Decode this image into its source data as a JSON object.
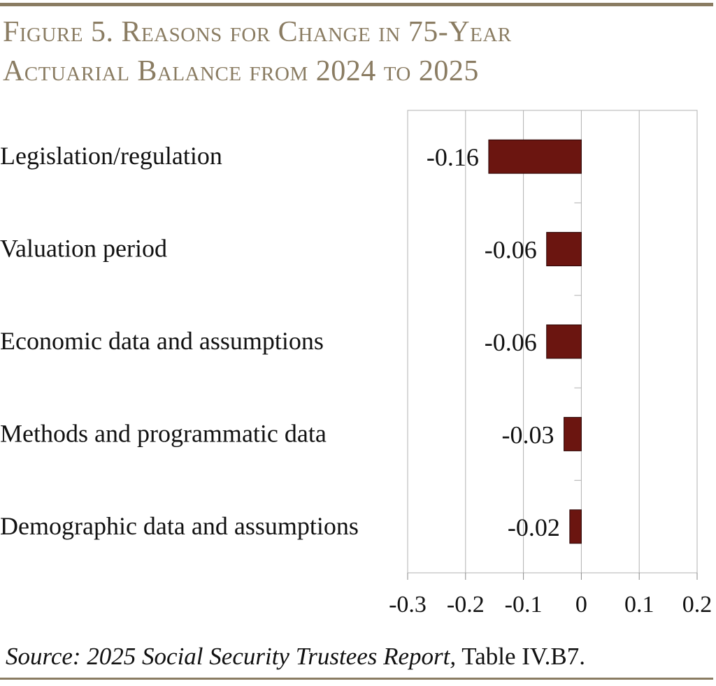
{
  "header": {
    "title_line1": "Figure 5. Reasons for Change in 75-Year",
    "title_line2": "Actuarial Balance from 2024 to 2025"
  },
  "source": {
    "prefix": "Source:",
    "report": "2025 Social Security Trustees Report,",
    "table": "Table IV.B7."
  },
  "colors": {
    "bar": "#6b1510",
    "accent": "#8a7c62",
    "grid": "#b0b0b0"
  },
  "chart_data": {
    "type": "bar",
    "orientation": "horizontal",
    "title": "Figure 5. Reasons for Change in 75-Year Actuarial Balance from 2024 to 2025",
    "categories": [
      "Legislation/regulation",
      "Valuation period",
      "Economic data and assumptions",
      "Methods and programmatic data",
      "Demographic data and assumptions"
    ],
    "values": [
      -0.16,
      -0.06,
      -0.06,
      -0.03,
      -0.02
    ],
    "value_labels": [
      "-0.16",
      "-0.06",
      "-0.06",
      "-0.03",
      "-0.02"
    ],
    "xlim": [
      -0.3,
      0.2
    ],
    "xticks": [
      -0.3,
      -0.2,
      -0.1,
      0,
      0.1,
      0.2
    ],
    "xtick_labels": [
      "-0.3",
      "-0.2",
      "-0.1",
      "0",
      "0.1",
      "0.2"
    ],
    "grid": true,
    "xlabel": "",
    "ylabel": ""
  }
}
